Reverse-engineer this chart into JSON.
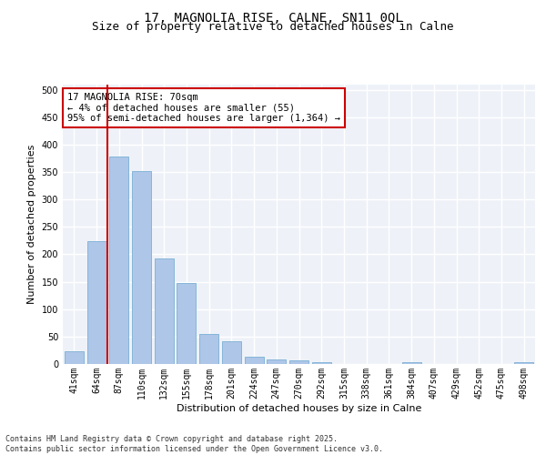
{
  "title_line1": "17, MAGNOLIA RISE, CALNE, SN11 0QL",
  "title_line2": "Size of property relative to detached houses in Calne",
  "xlabel": "Distribution of detached houses by size in Calne",
  "ylabel": "Number of detached properties",
  "categories": [
    "41sqm",
    "64sqm",
    "87sqm",
    "110sqm",
    "132sqm",
    "155sqm",
    "178sqm",
    "201sqm",
    "224sqm",
    "247sqm",
    "270sqm",
    "292sqm",
    "315sqm",
    "338sqm",
    "361sqm",
    "384sqm",
    "407sqm",
    "429sqm",
    "452sqm",
    "475sqm",
    "498sqm"
  ],
  "values": [
    24,
    224,
    378,
    351,
    193,
    147,
    55,
    41,
    13,
    9,
    7,
    4,
    0,
    0,
    0,
    4,
    0,
    0,
    0,
    0,
    4
  ],
  "bar_color": "#aec6e8",
  "bar_edge_color": "#7aafd4",
  "property_line_x": 1.5,
  "property_line_color": "#cc0000",
  "annotation_text": "17 MAGNOLIA RISE: 70sqm\n← 4% of detached houses are smaller (55)\n95% of semi-detached houses are larger (1,364) →",
  "annotation_box_color": "#ffffff",
  "annotation_box_edge_color": "#cc0000",
  "ylim": [
    0,
    510
  ],
  "yticks": [
    0,
    50,
    100,
    150,
    200,
    250,
    300,
    350,
    400,
    450,
    500
  ],
  "background_color": "#eef2f8",
  "footer_text": "Contains HM Land Registry data © Crown copyright and database right 2025.\nContains public sector information licensed under the Open Government Licence v3.0.",
  "grid_color": "#ffffff",
  "title_fontsize": 10,
  "subtitle_fontsize": 9,
  "axis_label_fontsize": 8,
  "tick_fontsize": 7,
  "annotation_fontsize": 7.5,
  "footer_fontsize": 6
}
